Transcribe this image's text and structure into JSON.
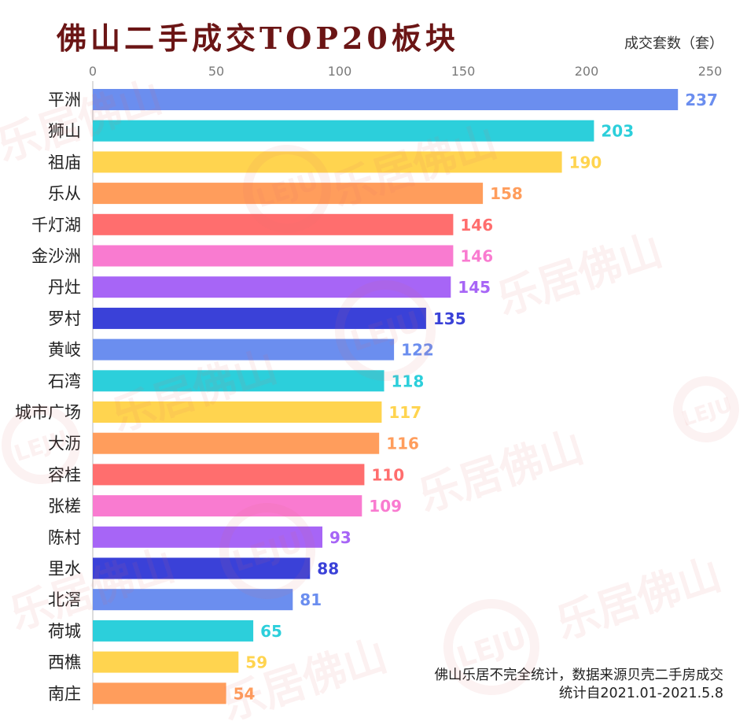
{
  "chart_data": {
    "type": "bar",
    "orientation": "horizontal",
    "title": "佛山二手成交TOP20板块",
    "xlabel": "成交套数（套）",
    "ylabel": "",
    "xaxis_position": "top",
    "xlim": [
      0,
      250
    ],
    "xticks": [
      0,
      50,
      100,
      150,
      200,
      250
    ],
    "grid": false,
    "data_labels": true,
    "categories": [
      "平洲",
      "狮山",
      "祖庙",
      "乐从",
      "千灯湖",
      "金沙洲",
      "丹灶",
      "罗村",
      "黄岐",
      "石湾",
      "城市广场",
      "大沥",
      "容桂",
      "张槎",
      "陈村",
      "里水",
      "北滘",
      "荷城",
      "西樵",
      "南庄"
    ],
    "values": [
      237,
      203,
      190,
      158,
      146,
      146,
      145,
      135,
      122,
      118,
      117,
      116,
      110,
      109,
      93,
      88,
      81,
      65,
      59,
      54
    ],
    "palette": [
      "#6b8eef",
      "#2ccfdb",
      "#ffd44f",
      "#ff9d5c",
      "#ff6e6e",
      "#f97bd0",
      "#a765f6",
      "#3a41d8"
    ]
  },
  "footnote": [
    "佛山乐居不完全统计，数据来源贝壳二手房成交",
    "统计自2021.01-2021.5.8"
  ],
  "watermark": {
    "text": "乐居佛山",
    "logo": "LEJU"
  },
  "colors": {
    "title": "#6b1515"
  }
}
